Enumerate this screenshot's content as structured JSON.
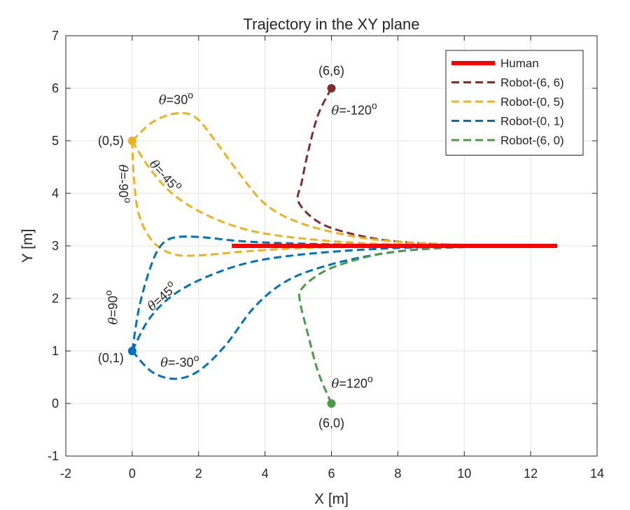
{
  "chart_data": {
    "type": "line",
    "title": "Trajectory in the XY plane",
    "xlabel": "X [m]",
    "ylabel": "Y [m]",
    "xlim": [
      -2,
      14
    ],
    "ylim": [
      -1,
      7
    ],
    "xticks": [
      -2,
      0,
      2,
      4,
      6,
      8,
      10,
      12,
      14
    ],
    "yticks": [
      -1,
      0,
      1,
      2,
      3,
      4,
      5,
      6,
      7
    ],
    "grid": true,
    "legend_position": "top-right",
    "series": [
      {
        "name": "Human",
        "color": "#ff0000",
        "style": "solid",
        "points": [
          [
            3.0,
            3.0
          ],
          [
            12.8,
            3.0
          ]
        ]
      },
      {
        "name": "Robot-(6, 6)",
        "color": "#7e2f2f",
        "style": "dashed",
        "points": [
          [
            6.0,
            6.0
          ],
          [
            5.6,
            5.5
          ],
          [
            5.3,
            4.8
          ],
          [
            5.1,
            4.2
          ],
          [
            5.0,
            3.85
          ],
          [
            5.5,
            3.5
          ],
          [
            6.2,
            3.3
          ],
          [
            7.5,
            3.12
          ],
          [
            9.0,
            3.04
          ],
          [
            10.5,
            3.01
          ],
          [
            11.2,
            3.0
          ]
        ]
      },
      {
        "name": "Robot-(0, 5)",
        "color": "#edb120",
        "style": "dashed",
        "points": [
          [
            0.0,
            5.0
          ],
          [
            0.6,
            5.35
          ],
          [
            1.3,
            5.52
          ],
          [
            1.9,
            5.45
          ],
          [
            2.5,
            5.0
          ],
          [
            3.2,
            4.4
          ],
          [
            4.0,
            3.8
          ],
          [
            5.0,
            3.45
          ],
          [
            6.5,
            3.2
          ],
          [
            8.0,
            3.08
          ],
          [
            10.0,
            3.02
          ],
          [
            11.2,
            3.0
          ]
        ]
      },
      {
        "name": "Robot-(0, 5)",
        "color": "#edb120",
        "style": "dashed",
        "points": [
          [
            0.0,
            5.0
          ],
          [
            0.5,
            4.5
          ],
          [
            1.2,
            4.0
          ],
          [
            2.2,
            3.6
          ],
          [
            3.5,
            3.3
          ],
          [
            5.0,
            3.15
          ],
          [
            7.0,
            3.05
          ],
          [
            9.0,
            3.02
          ],
          [
            11.2,
            3.0
          ]
        ]
      },
      {
        "name": "Robot-(0, 5)",
        "color": "#edb120",
        "style": "dashed",
        "points": [
          [
            0.0,
            5.0
          ],
          [
            0.05,
            4.3
          ],
          [
            0.2,
            3.6
          ],
          [
            0.6,
            3.1
          ],
          [
            1.2,
            2.85
          ],
          [
            2.0,
            2.82
          ],
          [
            3.5,
            2.9
          ],
          [
            5.5,
            2.97
          ],
          [
            8.0,
            2.99
          ],
          [
            11.2,
            3.0
          ]
        ]
      },
      {
        "name": "Robot-(0, 1)",
        "color": "#0072bd",
        "style": "dashed",
        "points": [
          [
            0.0,
            1.0
          ],
          [
            0.2,
            1.8
          ],
          [
            0.5,
            2.5
          ],
          [
            0.8,
            2.95
          ],
          [
            1.2,
            3.15
          ],
          [
            2.0,
            3.17
          ],
          [
            3.5,
            3.08
          ],
          [
            6.0,
            3.03
          ],
          [
            9.0,
            3.01
          ],
          [
            11.2,
            3.0
          ]
        ]
      },
      {
        "name": "Robot-(0, 1)",
        "color": "#0072bd",
        "style": "dashed",
        "points": [
          [
            0.0,
            1.0
          ],
          [
            0.5,
            1.6
          ],
          [
            1.2,
            2.05
          ],
          [
            2.2,
            2.4
          ],
          [
            3.5,
            2.68
          ],
          [
            5.0,
            2.83
          ],
          [
            7.0,
            2.93
          ],
          [
            9.0,
            2.98
          ],
          [
            11.2,
            3.0
          ]
        ]
      },
      {
        "name": "Robot-(0, 1)",
        "color": "#0072bd",
        "style": "dashed",
        "points": [
          [
            0.0,
            1.0
          ],
          [
            0.6,
            0.6
          ],
          [
            1.3,
            0.47
          ],
          [
            2.0,
            0.62
          ],
          [
            2.8,
            1.1
          ],
          [
            3.7,
            1.85
          ],
          [
            4.7,
            2.35
          ],
          [
            6.0,
            2.65
          ],
          [
            7.5,
            2.85
          ],
          [
            9.0,
            2.95
          ],
          [
            11.2,
            3.0
          ]
        ]
      },
      {
        "name": "Robot-(6, 0)",
        "color": "#4a9a47",
        "style": "dashed",
        "points": [
          [
            6.0,
            0.0
          ],
          [
            5.6,
            0.6
          ],
          [
            5.3,
            1.3
          ],
          [
            5.05,
            1.95
          ],
          [
            5.1,
            2.18
          ],
          [
            5.6,
            2.45
          ],
          [
            6.3,
            2.65
          ],
          [
            7.5,
            2.85
          ],
          [
            9.0,
            2.95
          ],
          [
            10.5,
            2.99
          ],
          [
            11.2,
            3.0
          ]
        ]
      }
    ],
    "markers": [
      {
        "x": 6,
        "y": 6,
        "label": "(6,6)",
        "color": "#7e2f2f"
      },
      {
        "x": 0,
        "y": 5,
        "label": "(0,5)",
        "color": "#edb120"
      },
      {
        "x": 0,
        "y": 1,
        "label": "(0,1)",
        "color": "#0072bd"
      },
      {
        "x": 6,
        "y": 0,
        "label": "(6,0)",
        "color": "#4a9a47"
      }
    ],
    "annotations": [
      {
        "sym": "θ",
        "text": "=-120",
        "sup": "o",
        "x": 6.0,
        "y": 5.5,
        "rotate": 0
      },
      {
        "sym": "θ",
        "text": "=30",
        "sup": "o",
        "x": 0.8,
        "y": 5.7,
        "rotate": 0
      },
      {
        "sym": "θ",
        "text": "=-45",
        "sup": "o",
        "x": 0.5,
        "y": 4.55,
        "rotate": 48
      },
      {
        "sym": "θ",
        "text": "=-90",
        "sup": "o",
        "x": -0.4,
        "y": 4.55,
        "rotate": 90
      },
      {
        "sym": "θ",
        "text": "=90",
        "sup": "o",
        "x": -0.45,
        "y": 1.5,
        "rotate": -90
      },
      {
        "sym": "θ",
        "text": "=45",
        "sup": "o",
        "x": 0.6,
        "y": 1.75,
        "rotate": -42
      },
      {
        "sym": "θ",
        "text": "=-30",
        "sup": "o",
        "x": 0.85,
        "y": 0.7,
        "rotate": 0
      },
      {
        "sym": "θ",
        "text": "=120",
        "sup": "o",
        "x": 6.0,
        "y": 0.3,
        "rotate": 0
      }
    ]
  }
}
